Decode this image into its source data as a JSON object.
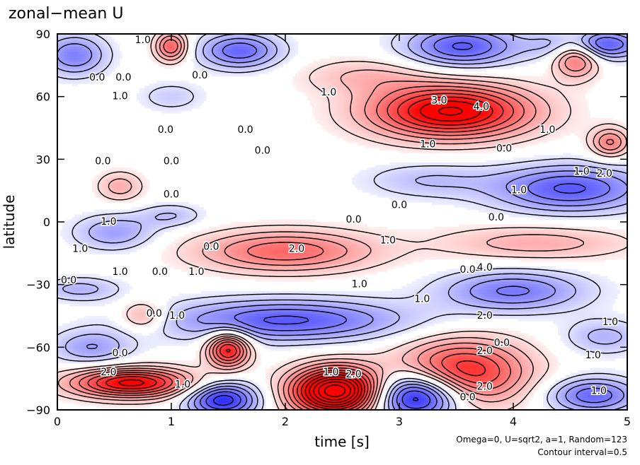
{
  "chart_data": {
    "type": "heatmap",
    "title": "zonal−mean U",
    "xlabel": "time [s]",
    "ylabel": "latitude",
    "xlim": [
      0,
      5
    ],
    "ylim": [
      -90,
      90
    ],
    "xticks": [
      0,
      1,
      2,
      3,
      4,
      5
    ],
    "yticks": [
      -90,
      -60,
      -30,
      0,
      30,
      60,
      90
    ],
    "notes": [
      "Omega=0, U=sqrt2, a=1, Random=123",
      "Contour interval=0.5"
    ],
    "contour_interval": 0.5,
    "colormap": {
      "positive": "#ff0000",
      "negative": "#0000ff",
      "zero": "#ffffff"
    },
    "contour_style": {
      "positive": "solid",
      "negative": "dashed"
    },
    "contour_labels": [
      {
        "x": 0.75,
        "y": 87,
        "text": "1.0"
      },
      {
        "x": 0.35,
        "y": 69,
        "text": "0.0"
      },
      {
        "x": 0.58,
        "y": 69,
        "text": "0.0"
      },
      {
        "x": 1.25,
        "y": 70,
        "text": "0.0"
      },
      {
        "x": 0.55,
        "y": 60,
        "text": "1.0"
      },
      {
        "x": 2.38,
        "y": 62,
        "text": "1.0"
      },
      {
        "x": 3.35,
        "y": 58,
        "text": "3.0"
      },
      {
        "x": 3.72,
        "y": 55,
        "text": "4.0"
      },
      {
        "x": 0.95,
        "y": 44,
        "text": "0.0"
      },
      {
        "x": 1.65,
        "y": 44,
        "text": "0.0"
      },
      {
        "x": 1.8,
        "y": 34,
        "text": "0.0"
      },
      {
        "x": 3.25,
        "y": 37,
        "text": "1.0"
      },
      {
        "x": 4.3,
        "y": 44,
        "text": "1.0"
      },
      {
        "x": 3.92,
        "y": 35,
        "text": "0.0"
      },
      {
        "x": 0.4,
        "y": 29,
        "text": "0.0"
      },
      {
        "x": 1.0,
        "y": 29,
        "text": "0.0"
      },
      {
        "x": 4.6,
        "y": 24,
        "text": "1.0"
      },
      {
        "x": 4.8,
        "y": 23,
        "text": "2.0"
      },
      {
        "x": 1.0,
        "y": 13,
        "text": "0.0"
      },
      {
        "x": 4.05,
        "y": 15,
        "text": "1.0"
      },
      {
        "x": 3.0,
        "y": 8,
        "text": "0.0"
      },
      {
        "x": 2.6,
        "y": 1,
        "text": "0.0"
      },
      {
        "x": 3.85,
        "y": 2,
        "text": "0.0"
      },
      {
        "x": 0.45,
        "y": 0,
        "text": "1.0"
      },
      {
        "x": 0.2,
        "y": -13,
        "text": "1.0"
      },
      {
        "x": 1.35,
        "y": -12,
        "text": "0.0"
      },
      {
        "x": 2.1,
        "y": -13,
        "text": "2.0"
      },
      {
        "x": 2.9,
        "y": -9,
        "text": "1.0"
      },
      {
        "x": 0.55,
        "y": -24,
        "text": "1.0"
      },
      {
        "x": 0.9,
        "y": -24,
        "text": "0.0"
      },
      {
        "x": 1.22,
        "y": -24,
        "text": "1.0"
      },
      {
        "x": 3.6,
        "y": -23,
        "text": "0.0"
      },
      {
        "x": 3.75,
        "y": -22,
        "text": "4.0"
      },
      {
        "x": 0.1,
        "y": -28,
        "text": "0.0"
      },
      {
        "x": 2.65,
        "y": -30,
        "text": "1.0"
      },
      {
        "x": 3.2,
        "y": -37,
        "text": "1.0"
      },
      {
        "x": 0.85,
        "y": -44,
        "text": "0.0"
      },
      {
        "x": 1.05,
        "y": -45,
        "text": "1.0"
      },
      {
        "x": 3.75,
        "y": -45,
        "text": "2.0"
      },
      {
        "x": 4.85,
        "y": -48,
        "text": "1.0"
      },
      {
        "x": 0.55,
        "y": -63,
        "text": "0.0"
      },
      {
        "x": 3.75,
        "y": -62,
        "text": "2.0"
      },
      {
        "x": 3.9,
        "y": -58,
        "text": "0.0"
      },
      {
        "x": 4.7,
        "y": -64,
        "text": "1.0"
      },
      {
        "x": 2.4,
        "y": -72,
        "text": "1.0"
      },
      {
        "x": 2.6,
        "y": -73,
        "text": "2.0"
      },
      {
        "x": 0.45,
        "y": -72,
        "text": "2.0"
      },
      {
        "x": 3.75,
        "y": -79,
        "text": "2.0"
      },
      {
        "x": 3.6,
        "y": -84,
        "text": "0.0"
      },
      {
        "x": 4.75,
        "y": -81,
        "text": "1.0"
      },
      {
        "x": 1.1,
        "y": -78,
        "text": "1.0"
      }
    ]
  }
}
